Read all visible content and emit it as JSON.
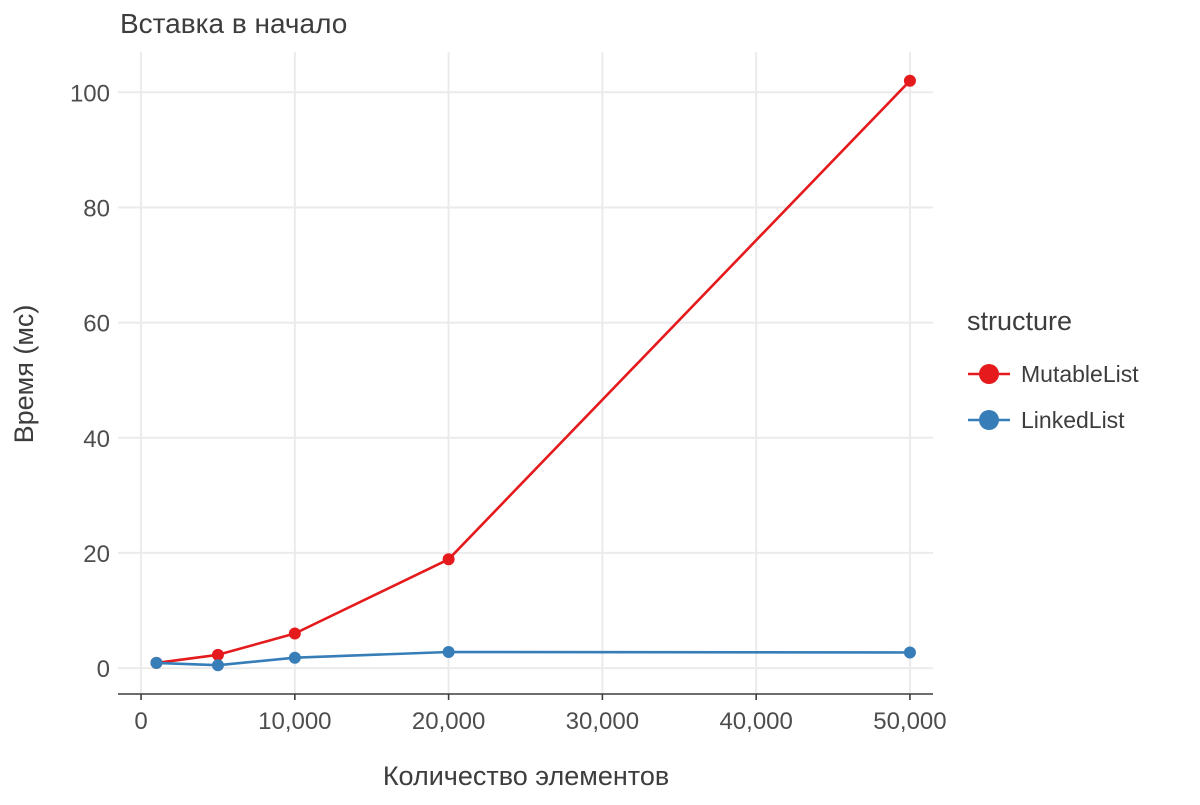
{
  "chart_data": {
    "type": "line",
    "title": "Вставка в начало",
    "xlabel": "Количество элементов",
    "ylabel": "Время (мс)",
    "xlim": [
      -1500,
      51500
    ],
    "ylim": [
      -4.5,
      107
    ],
    "x_ticks": [
      0,
      10000,
      20000,
      30000,
      40000,
      50000
    ],
    "x_tick_labels": [
      "0",
      "10,000",
      "20,000",
      "30,000",
      "40,000",
      "50,000"
    ],
    "y_ticks": [
      0,
      20,
      40,
      60,
      80,
      100
    ],
    "y_tick_labels": [
      "0",
      "20",
      "40",
      "60",
      "80",
      "100"
    ],
    "grid": true,
    "legend": {
      "title": "structure",
      "position": "right"
    },
    "series": [
      {
        "name": "MutableList",
        "color": "#e41a1c",
        "x": [
          1000,
          5000,
          10000,
          20000,
          50000
        ],
        "y": [
          0.9,
          2.3,
          6.0,
          18.9,
          102.0
        ]
      },
      {
        "name": "LinkedList",
        "color": "#377eb8",
        "x": [
          1000,
          5000,
          10000,
          20000,
          50000
        ],
        "y": [
          0.9,
          0.5,
          1.8,
          2.8,
          2.7
        ]
      }
    ]
  }
}
